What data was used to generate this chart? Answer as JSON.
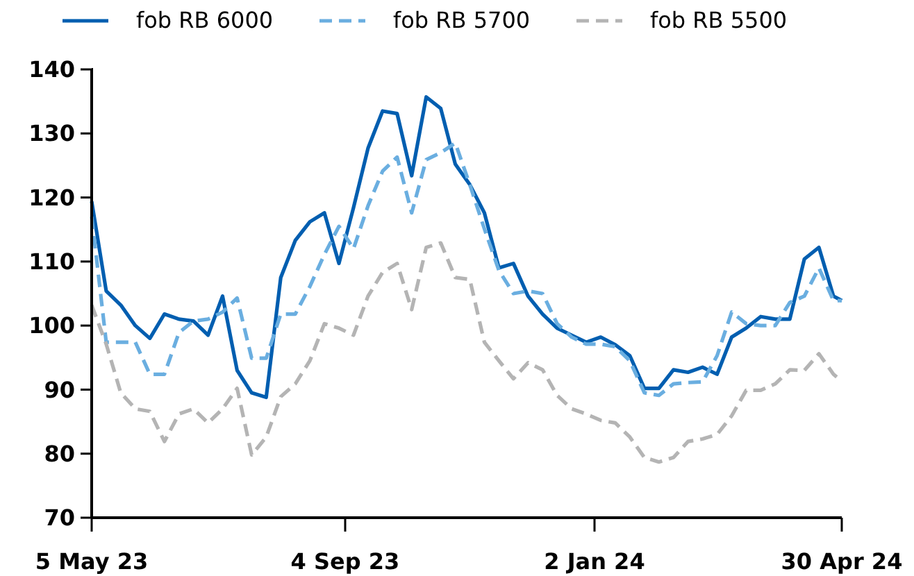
{
  "chart_data": {
    "type": "line",
    "x": [
      "2023-05-05",
      "2023-05-12",
      "2023-05-19",
      "2023-05-26",
      "2023-06-02",
      "2023-06-09",
      "2023-06-16",
      "2023-06-23",
      "2023-06-30",
      "2023-07-07",
      "2023-07-14",
      "2023-07-21",
      "2023-07-28",
      "2023-08-04",
      "2023-08-11",
      "2023-08-18",
      "2023-08-25",
      "2023-09-01",
      "2023-09-08",
      "2023-09-15",
      "2023-09-22",
      "2023-09-29",
      "2023-10-06",
      "2023-10-13",
      "2023-10-20",
      "2023-10-27",
      "2023-11-03",
      "2023-11-10",
      "2023-11-17",
      "2023-11-24",
      "2023-12-01",
      "2023-12-08",
      "2023-12-15",
      "2023-12-22",
      "2023-12-29",
      "2024-01-05",
      "2024-01-12",
      "2024-01-19",
      "2024-01-26",
      "2024-02-02",
      "2024-02-09",
      "2024-02-16",
      "2024-02-23",
      "2024-03-01",
      "2024-03-08",
      "2024-03-15",
      "2024-03-22",
      "2024-03-29",
      "2024-04-05",
      "2024-04-12",
      "2024-04-19",
      "2024-04-26",
      "2024-04-30"
    ],
    "series": [
      {
        "name": "fob RB 6000",
        "color": "#005eb0",
        "line_style": "solid",
        "values": [
          119.4,
          105.4,
          103.2,
          100,
          98,
          101.8,
          101,
          100.7,
          98.5,
          104.6,
          93,
          89.5,
          88.8,
          107.5,
          113.3,
          116.2,
          117.6,
          109.7,
          118.4,
          127.7,
          133.5,
          133.1,
          123.4,
          135.7,
          133.9,
          125.2,
          122,
          117.6,
          109,
          109.7,
          104.6,
          101.8,
          99.6,
          98.5,
          97.4,
          98.2,
          97,
          95.3,
          90.2,
          90.2,
          93.1,
          92.7,
          93.5,
          92.4,
          98.2,
          99.6,
          101.4,
          101,
          101,
          110.4,
          112.2,
          104.6,
          103.9
        ]
      },
      {
        "name": "fob RB 5700",
        "color": "#6aaee0",
        "line_style": "dashed",
        "values": [
          117,
          97.4,
          97.4,
          97.4,
          92.4,
          92.4,
          98.9,
          100.7,
          101,
          102.1,
          104.3,
          94.9,
          94.9,
          101.8,
          101.8,
          106.1,
          111.1,
          115.5,
          112,
          118.7,
          124.1,
          126.3,
          117.6,
          125.9,
          127,
          128.5,
          122,
          115.1,
          108.6,
          105,
          105.4,
          105,
          100.3,
          98.2,
          97.1,
          97.1,
          96.7,
          94.5,
          89.5,
          89.1,
          90.9,
          91.1,
          91.2,
          95.3,
          102.1,
          100.3,
          100,
          100,
          103.6,
          104.6,
          109,
          103.9,
          103.9
        ]
      },
      {
        "name": "fob RB 5500",
        "color": "#b4b4b4",
        "line_style": "dashed",
        "values": [
          103.2,
          97.1,
          89.5,
          87,
          86.6,
          81.9,
          86.2,
          87,
          84.8,
          87,
          90.2,
          79.8,
          82.6,
          88.9,
          90.9,
          94.5,
          100.3,
          99.6,
          98.5,
          104.6,
          108.3,
          109.7,
          102.5,
          112.2,
          112.9,
          107.5,
          107.2,
          97.4,
          94.5,
          91.7,
          94.2,
          93.1,
          89.1,
          87,
          86.2,
          85.2,
          84.8,
          82.6,
          79.4,
          78.7,
          79.4,
          81.9,
          82.3,
          83,
          85.9,
          89.9,
          89.9,
          90.9,
          93.1,
          93,
          95.6,
          92.4,
          91.3
        ]
      }
    ],
    "xlim": [
      "2023-05-05",
      "2024-04-30"
    ],
    "xticks": [
      {
        "value": "2023-05-05",
        "label": "5 May 23"
      },
      {
        "value": "2023-09-04",
        "label": "4 Sep 23"
      },
      {
        "value": "2024-01-02",
        "label": "2 Jan 24"
      },
      {
        "value": "2024-04-30",
        "label": "30 Apr 24"
      }
    ],
    "ylim": [
      70,
      140
    ],
    "yticks": [
      70,
      80,
      90,
      100,
      110,
      120,
      130,
      140
    ],
    "grid": false,
    "legend": "top",
    "marker": "none"
  }
}
